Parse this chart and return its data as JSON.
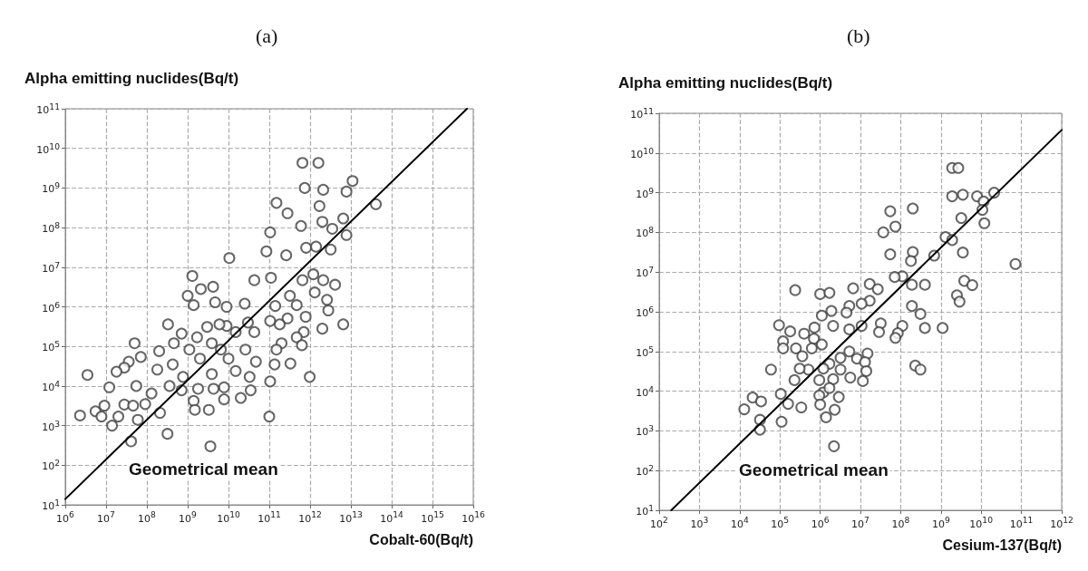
{
  "chart_data": [
    {
      "type": "scatter",
      "title": "(a)",
      "ylabel": "Alpha emitting nuclides(Bq/t)",
      "xlabel": "Cobalt-60(Bq/t)",
      "log": "xy",
      "grid": true,
      "marker": "circle",
      "xlim": [
        1000000.0,
        1e+16
      ],
      "ylim": [
        10,
        100000000000.0
      ],
      "xticks": [
        {
          "value": 1000000.0,
          "label": "10$^{6}$"
        },
        {
          "value": 10000000.0,
          "label": "10$^{7}$"
        },
        {
          "value": 100000000.0,
          "label": "10$^{8}$"
        },
        {
          "value": 1000000000.0,
          "label": "10$^{9}$"
        },
        {
          "value": 10000000000.0,
          "label": "10$^{10}$"
        },
        {
          "value": 100000000000.0,
          "label": "10$^{11}$"
        },
        {
          "value": 1000000000000.0,
          "label": "10$^{12}$"
        },
        {
          "value": 10000000000000.0,
          "label": "10$^{13}$"
        },
        {
          "value": 100000000000000.0,
          "label": "10$^{14}$"
        },
        {
          "value": 1000000000000000.0,
          "label": "10$^{15}$"
        },
        {
          "value": 1e+16,
          "label": "10$^{16}$"
        }
      ],
      "yticks": [
        {
          "value": 10,
          "label": "10$^{1}$"
        },
        {
          "value": 100,
          "label": "10$^{2}$"
        },
        {
          "value": 1000.0,
          "label": "10$^{3}$"
        },
        {
          "value": 10000.0,
          "label": "10$^{4}$"
        },
        {
          "value": 100000.0,
          "label": "10$^{5}$"
        },
        {
          "value": 1000000.0,
          "label": "10$^{6}$"
        },
        {
          "value": 10000000.0,
          "label": "10$^{7}$"
        },
        {
          "value": 100000000.0,
          "label": "10$^{8}$"
        },
        {
          "value": 1000000000.0,
          "label": "10$^{9}$"
        },
        {
          "value": 10000000000.0,
          "label": "10$^{10}$"
        },
        {
          "value": 100000000000.0,
          "label": "10$^{11}$"
        }
      ],
      "annotations": [
        "Geometrical mean"
      ],
      "series": [
        {
          "color": "#404040",
          "x": [
            650000000000.0,
            1600000000000.0,
            740000000000.0,
            2100000000000.0,
            7800000000000.0,
            11000000000000.0,
            41000000000000.0,
            150000000000.0,
            280000000000.0,
            1700000000000.0,
            600000000000.0,
            2000000000000.0,
            3500000000000.0,
            6500000000000.0,
            7800000000000.0,
            105000000000.0,
            85000000000.0,
            260000000000.0,
            800000000000.0,
            1400000000000.0,
            3200000000000.0,
            10500000000.0,
            1300000000.0,
            2100000000.0,
            4200000000.0,
            1000000000.0,
            1400000000.0,
            4700000000.0,
            9000000000.0,
            25000000000.0,
            43000000000.0,
            110000000000.0,
            140000000000.0,
            320000000000.0,
            650000000000.0,
            1200000000000.0,
            2100000000000.0,
            4100000000000.0,
            2600000000000.0,
            1300000000000.0,
            470000000000.0,
            2800000000000.0,
            6500000000000.0,
            2000000000000.0,
            780000000000.0,
            280000000000.0,
            180000000000.0,
            105000000000.0,
            700000000000.0,
            470000000000.0,
            200000000000.0,
            150000000000.0,
            330000000000.0,
            630000000000.0,
            135000000000.0,
            980000000000.0,
            105000000000.0,
            100000000000.0,
            33000000000.0,
            35000000000.0,
            20000000000.0,
            47000000000.0,
            26000000000.0,
            43000000000.0,
            30000000000.0,
            15000000000.0,
            9000000000.0,
            6000000000.0,
            3000000000.0,
            1700000000.0,
            1100000000.0,
            2000000000.0,
            3900000000.0,
            6500000000.0,
            10000000000.0,
            15000000000.0,
            7800000000.0,
            4300000000.0,
            7800000000.0,
            3900000000.0,
            1800000000.0,
            1400000000.0,
            1500000000.0,
            3300000000.0,
            3600000000.0,
            710000000.0,
            770000000.0,
            430000000.0,
            460000000.0,
            710000000.0,
            330000000.0,
            200000000.0,
            180000000.0,
            360000000.0,
            210000000.0,
            320000000.0,
            130000000.0,
            91000000.0,
            55000000.0,
            50000000.0,
            71000000.0,
            36000000.0,
            28000000.0,
            18000000.0,
            12000000.0,
            3500000.0,
            2300000.0,
            5500000.0,
            9100000.0,
            7700000.0,
            14000000.0,
            20000000.0,
            28000000.0,
            46000000.0,
            60000000.0,
            41000000.0
          ],
          "values": [
            4300000000.0,
            4300000000.0,
            1000000000.0,
            900000000.0,
            810000000.0,
            1500000000.0,
            390000000.0,
            420000000.0,
            230000000.0,
            350000000.0,
            110000000.0,
            140000000.0,
            93000000.0,
            170000000.0,
            65000000.0,
            76000000.0,
            25000000.0,
            20000000.0,
            31000000.0,
            33000000.0,
            28000000.0,
            17000000.0,
            6000000.0,
            2800000.0,
            3200000.0,
            1900000.0,
            1100000.0,
            1300000.0,
            1000000.0,
            1200000.0,
            4700000.0,
            5400000.0,
            1050000.0,
            1900000.0,
            4700000.0,
            6600000.0,
            4700000.0,
            3600000.0,
            1500000.0,
            2300000.0,
            1100000.0,
            810000.0,
            360000.0,
            280000.0,
            560000.0,
            510000.0,
            360000.0,
            440000.0,
            230000.0,
            170000.0,
            120000.0,
            83000.0,
            37000.0,
            107000.0,
            35000.0,
            17000.0,
            13000.0,
            1700.0,
            17000.0,
            7800.0,
            5000.0,
            41000.0,
            83000.0,
            230000.0,
            400000.0,
            230000.0,
            330000.0,
            360000.0,
            310000.0,
            170000.0,
            83000.0,
            49000.0,
            120000.0,
            83000.0,
            49000.0,
            24000.0,
            9300.0,
            8500.0,
            4600.0,
            20000.0,
            8500.0,
            4200.0,
            2500.0,
            2500.0,
            300.0,
            7800.0,
            17000.0,
            35000.0,
            120000.0,
            210000.0,
            360000.0,
            76000.0,
            26000.0,
            10000.0,
            2100.0,
            620.0,
            6500.0,
            3500.0,
            10000.0,
            120000.0,
            54000.0,
            41000.0,
            29000.0,
            23000.0,
            9300.0,
            19000.0,
            1800.0,
            2300.0,
            3200.0,
            1700.0,
            1000.0,
            1700.0,
            3400.0,
            3200.0,
            1400.0,
            400.0
          ]
        },
        {
          "type": "line",
          "color": "#000000",
          "marker": "none",
          "line_style": "solid",
          "x": [
            1000000.0,
            7000000000000000.0
          ],
          "values": [
            14,
            100000000000.0
          ]
        }
      ]
    },
    {
      "type": "scatter",
      "title": "(b)",
      "ylabel": "Alpha emitting nuclides(Bq/t)",
      "xlabel": "Cesium-137(Bq/t)",
      "log": "xy",
      "grid": true,
      "marker": "circle",
      "xlim": [
        100,
        1000000000000.0
      ],
      "ylim": [
        10,
        100000000000.0
      ],
      "xticks": [
        {
          "value": 100,
          "label": "10$^{2}$"
        },
        {
          "value": 1000.0,
          "label": "10$^{3}$"
        },
        {
          "value": 10000.0,
          "label": "10$^{4}$"
        },
        {
          "value": 100000.0,
          "label": "10$^{5}$"
        },
        {
          "value": 1000000.0,
          "label": "10$^{6}$"
        },
        {
          "value": 10000000.0,
          "label": "10$^{7}$"
        },
        {
          "value": 100000000.0,
          "label": "10$^{8}$"
        },
        {
          "value": 1000000000.0,
          "label": "10$^{9}$"
        },
        {
          "value": 10000000000.0,
          "label": "10$^{10}$"
        },
        {
          "value": 100000000000.0,
          "label": "10$^{11}$"
        },
        {
          "value": 1000000000000.0,
          "label": "10$^{12}$"
        }
      ],
      "yticks": [
        {
          "value": 10,
          "label": "10$^{1}$"
        },
        {
          "value": 100,
          "label": "10$^{2}$"
        },
        {
          "value": 1000.0,
          "label": "10$^{3}$"
        },
        {
          "value": 10000.0,
          "label": "10$^{4}$"
        },
        {
          "value": 100000.0,
          "label": "10$^{5}$"
        },
        {
          "value": 1000000.0,
          "label": "10$^{6}$"
        },
        {
          "value": 10000000.0,
          "label": "10$^{7}$"
        },
        {
          "value": 100000000.0,
          "label": "10$^{8}$"
        },
        {
          "value": 1000000000.0,
          "label": "10$^{9}$"
        },
        {
          "value": 10000000000.0,
          "label": "10$^{10}$"
        },
        {
          "value": 100000000000.0,
          "label": "10$^{11}$"
        }
      ],
      "annotations": [
        "Geometrical mean"
      ],
      "series": [
        {
          "color": "#404040",
          "x": [
            1900000000.0,
            2700000000.0,
            1900000000.0,
            3500000000.0,
            7900000000.0,
            21000000000.0,
            11500000000.0,
            10700000000.0,
            12000000000.0,
            3200000000.0,
            1300000000.0,
            1900000000.0,
            3500000000.0,
            680000000.0,
            71000000000.0,
            3800000000.0,
            6000000000.0,
            2500000000.0,
            2900000000.0,
            1100000000.0,
            200000000.0,
            55000000.0,
            74000000.0,
            37000000.0,
            55000000.0,
            200000000.0,
            180000000.0,
            110000000.0,
            71000000.0,
            190000000.0,
            400000000.0,
            190000000.0,
            310000000.0,
            400000000.0,
            110000000.0,
            85000000.0,
            74000000.0,
            32000000.0,
            29000000.0,
            230000000.0,
            310000000.0,
            17000000.0,
            27000000.0,
            17000000.0,
            10700000.0,
            6600000.0,
            5300000.0,
            4500000.0,
            10700000.0,
            5300000.0,
            1900000.0,
            1000000.0,
            1700000.0,
            1100000.0,
            2100000.0,
            720000.0,
            700000.0,
            400000.0,
            180000.0,
            95000.0,
            120000.0,
            120000.0,
            250000.0,
            620000.0,
            1100000.0,
            360000.0,
            1700000.0,
            3200000.0,
            5300000.0,
            8200000.0,
            15000000.0,
            13000000.0,
            14000000.0,
            11500000.0,
            5600000.0,
            3200000.0,
            2100000.0,
            950000.0,
            1200000.0,
            510000.0,
            310000.0,
            230000.0,
            60000.0,
            1200000.0,
            1700000.0,
            950000.0,
            2900000.0,
            1000000.0,
            2300000.0,
            1400000.0,
            2200000.0,
            105000.0,
            160000.0,
            340000.0,
            110000.0,
            21000.0,
            34000.0,
            13000.0,
            32000.0,
            32000.0,
            240000.0
          ],
          "values": [
            4200000000.0,
            4200000000.0,
            810000000.0,
            890000000.0,
            810000000.0,
            1000000000.0,
            600000000.0,
            370000000.0,
            170000000.0,
            230000000.0,
            76000000.0,
            64000000.0,
            31000000.0,
            26000000.0,
            16000000.0,
            6000000.0,
            4700000.0,
            2600000.0,
            1800000.0,
            390000.0,
            400000000.0,
            340000000.0,
            140000000.0,
            100000000.0,
            28000000.0,
            32000000.0,
            19000000.0,
            7800000.0,
            7500000.0,
            4800000.0,
            4800000.0,
            1400000.0,
            880000.0,
            390000.0,
            440000.0,
            290000.0,
            220000.0,
            510000.0,
            310000.0,
            44000.0,
            35000.0,
            5000000.0,
            3700000.0,
            1900000.0,
            1600000.0,
            3900000.0,
            1400000.0,
            950000.0,
            440000.0,
            360000.0,
            1050000.0,
            2800000.0,
            3000000.0,
            800000.0,
            440000.0,
            400000.0,
            210000.0,
            280000.0,
            320000.0,
            460000.0,
            180000.0,
            120000.0,
            120000.0,
            120000.0,
            150000.0,
            76000.0,
            49000.0,
            69000.0,
            100000.0,
            66000.0,
            89000.0,
            54000.0,
            32000.0,
            18000.0,
            22000.0,
            35000.0,
            20000.0,
            19000.0,
            37000.0,
            35000.0,
            37000.0,
            19000.0,
            35000.0,
            9300.0,
            12000.0,
            7800.0,
            7100.0,
            4600.0,
            3400.0,
            2200.0,
            410.0,
            8500.0,
            4800.0,
            3900.0,
            1700.0,
            6900.0,
            5500.0,
            3500.0,
            1900.0,
            1070.0,
            3500000.0
          ]
        },
        {
          "type": "line",
          "color": "#000000",
          "marker": "none",
          "line_style": "solid",
          "x": [
            200,
            1000000000000.0
          ],
          "values": [
            10,
            38000000000.0
          ]
        }
      ]
    }
  ]
}
